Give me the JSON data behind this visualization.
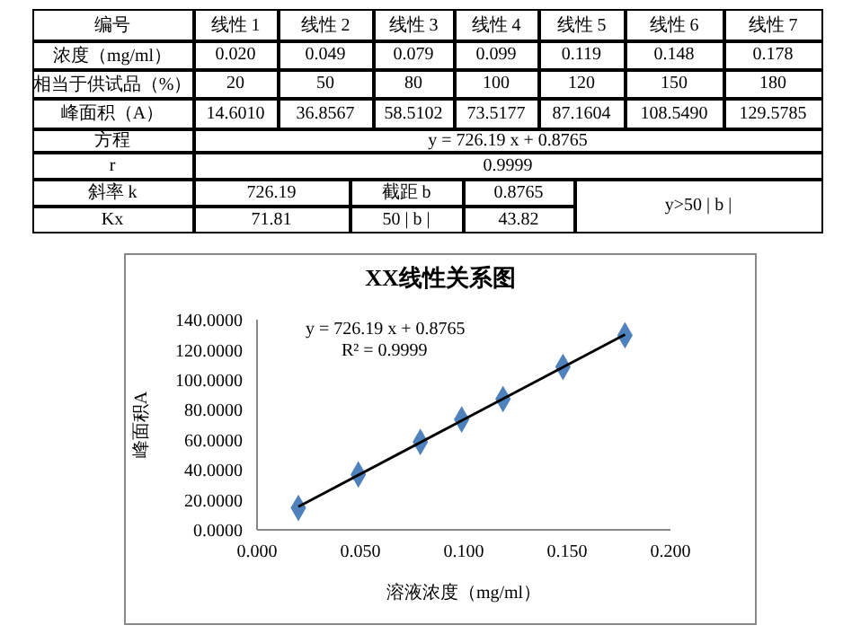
{
  "chart_data": [
    {
      "type": "other",
      "annotations": [
        "编号",
        "线性 1",
        "线性 2",
        "线性 3",
        "线性 4",
        "线性 5",
        "线性 6",
        "线性 7",
        "浓度（mg/ml）",
        "0.020",
        "0.049",
        "0.079",
        "0.099",
        "0.119",
        "0.148",
        "0.178",
        "相当于供试品（%）",
        "20",
        "50",
        "80",
        "100",
        "120",
        "150",
        "180",
        "峰面积（A）",
        "14.6010",
        "36.8567",
        "58.5102",
        "73.5177",
        "87.1604",
        "108.5490",
        "129.5785",
        "方程",
        "y = 726.19 x + 0.8765",
        "r",
        "0.9999",
        "斜率 k",
        "726.19",
        "截距 b",
        "0.8765",
        "y>50 | b |",
        "Kx",
        "71.81",
        "50 | b |",
        "43.82"
      ]
    },
    {
      "type": "scatter",
      "title": "XX线性关系图",
      "xlabel": "溶液浓度（mg/ml）",
      "ylabel": "峰面积A",
      "xlim": [
        0,
        0.2
      ],
      "xticks": [
        {
          "value": 0,
          "label": "0.000"
        },
        {
          "value": 0.05,
          "label": "0.050"
        },
        {
          "value": 0.1,
          "label": "0.100"
        },
        {
          "value": 0.15,
          "label": "0.150"
        },
        {
          "value": 0.2,
          "label": "0.200"
        }
      ],
      "ylim": [
        0,
        140
      ],
      "yticks": [
        {
          "value": 0,
          "label": "0.0000"
        },
        {
          "value": 20,
          "label": "20.0000"
        },
        {
          "value": 40,
          "label": "40.0000"
        },
        {
          "value": 60,
          "label": "60.0000"
        },
        {
          "value": 80,
          "label": "80.0000"
        },
        {
          "value": 100,
          "label": "100.0000"
        },
        {
          "value": 120,
          "label": "120.0000"
        },
        {
          "value": 140,
          "label": "140.0000"
        }
      ],
      "grid": false,
      "annotations": [
        "y = 726.19  x + 0.8765",
        "R² = 0.9999"
      ],
      "series": [
        {
          "type": "scatter",
          "color": "#4f81bd",
          "marker": "diamond",
          "x": [
            0.02,
            0.049,
            0.079,
            0.099,
            0.119,
            0.148,
            0.178
          ],
          "values": [
            14.601,
            36.8567,
            58.5102,
            73.5177,
            87.1604,
            108.549,
            129.5785
          ]
        },
        {
          "type": "line",
          "color": "#000000",
          "marker": "none",
          "x": [
            0.02,
            0.178
          ],
          "values": [
            15.4,
            130.1
          ]
        }
      ]
    }
  ]
}
